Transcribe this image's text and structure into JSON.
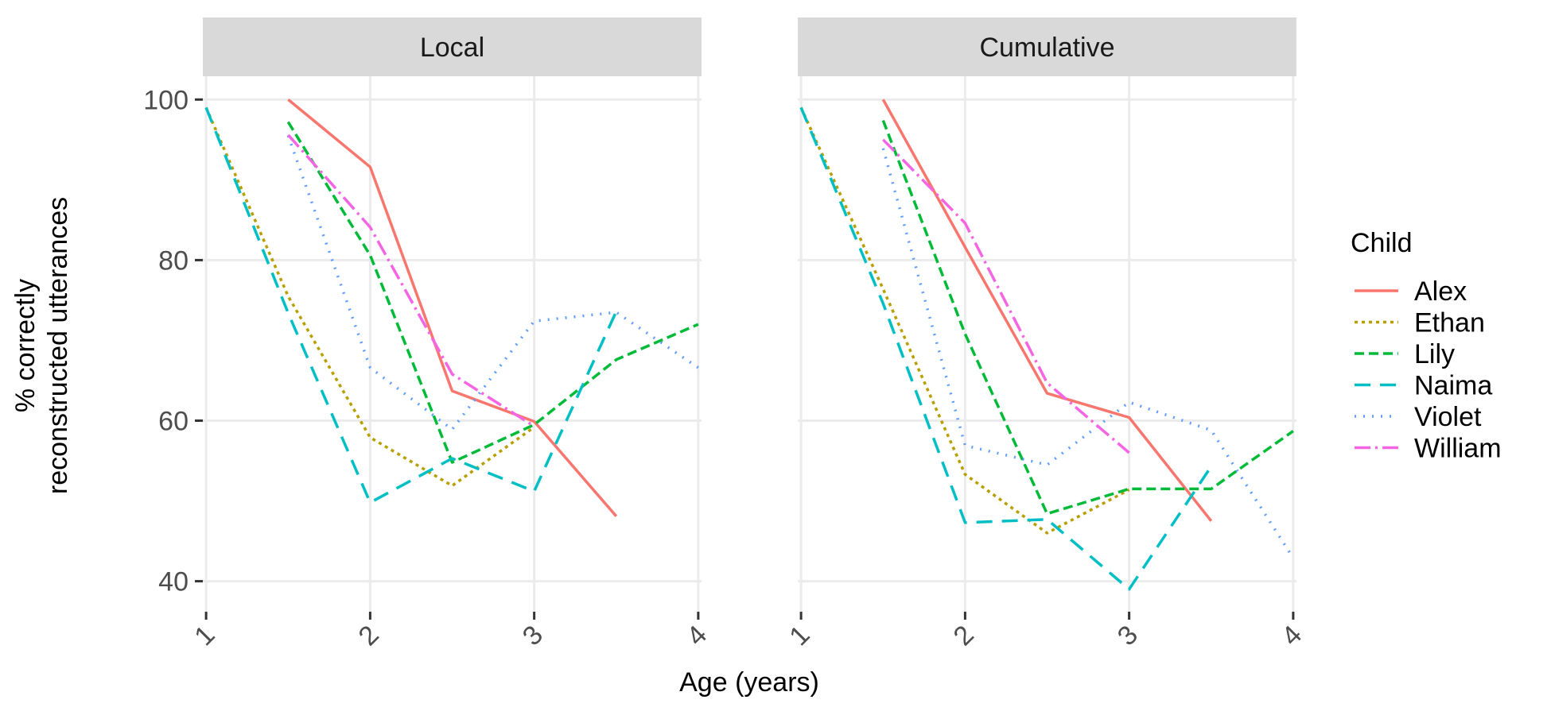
{
  "chart_data": {
    "type": "line",
    "xlabel": "Age (years)",
    "ylabel_lines": [
      "% correctly",
      "reconstructed utterances"
    ],
    "xticks": [
      1,
      2,
      3,
      4
    ],
    "xtick_labels": [
      "1",
      "2",
      "3",
      "4"
    ],
    "yticks": [
      40,
      60,
      80,
      100
    ],
    "ytick_labels": [
      "40",
      "60",
      "80",
      "100"
    ],
    "xlim": [
      0.98,
      4.02
    ],
    "ylim": [
      36.2,
      102.9
    ],
    "grid": true,
    "legend_position": "right",
    "legend_title": "Child",
    "series_styles": [
      {
        "name": "Alex",
        "color": "#F8766D",
        "dash": "none"
      },
      {
        "name": "Ethan",
        "color": "#B79F00",
        "dash": "dotted-short"
      },
      {
        "name": "Lily",
        "color": "#00BA38",
        "dash": "dashed"
      },
      {
        "name": "Naima",
        "color": "#00BFC4",
        "dash": "long-dash"
      },
      {
        "name": "Violet",
        "color": "#619CFF",
        "dash": "dotted"
      },
      {
        "name": "William",
        "color": "#F564E3",
        "dash": "dash-dot"
      }
    ],
    "panels": [
      {
        "title": "Local",
        "series": [
          {
            "name": "Alex",
            "x": [
              1.5,
              2.0,
              2.5,
              3.0,
              3.5
            ],
            "y": [
              100,
              91.6,
              63.7,
              59.9,
              48.1
            ]
          },
          {
            "name": "Ethan",
            "x": [
              1.0,
              1.5,
              2.0,
              2.5,
              3.0
            ],
            "y": [
              99.0,
              75.5,
              57.9,
              51.9,
              59.2
            ]
          },
          {
            "name": "Lily",
            "x": [
              1.5,
              2.0,
              2.5,
              3.0,
              3.5,
              4.0
            ],
            "y": [
              97.2,
              80.6,
              54.8,
              59.5,
              67.6,
              72.0
            ]
          },
          {
            "name": "Naima",
            "x": [
              1.0,
              1.5,
              2.0,
              2.5,
              3.0,
              3.5
            ],
            "y": [
              99.0,
              73.4,
              49.8,
              55.3,
              51.2,
              73.6
            ]
          },
          {
            "name": "Violet",
            "x": [
              1.5,
              2.0,
              2.5,
              3.0,
              3.5,
              4.0
            ],
            "y": [
              95.5,
              66.6,
              58.9,
              72.4,
              73.5,
              66.6
            ]
          },
          {
            "name": "William",
            "x": [
              1.5,
              2.0,
              2.5,
              3.0
            ],
            "y": [
              95.6,
              84.1,
              65.8,
              59.3
            ]
          }
        ]
      },
      {
        "title": "Cumulative",
        "series": [
          {
            "name": "Alex",
            "x": [
              1.5,
              2.0,
              2.5,
              3.0,
              3.5
            ],
            "y": [
              100,
              81.6,
              63.4,
              60.4,
              47.5
            ]
          },
          {
            "name": "Ethan",
            "x": [
              1.0,
              1.5,
              2.0,
              2.5,
              3.0
            ],
            "y": [
              99.0,
              76.4,
              53.3,
              46.0,
              51.4
            ]
          },
          {
            "name": "Lily",
            "x": [
              1.5,
              2.0,
              2.5,
              3.0,
              3.5,
              4.0
            ],
            "y": [
              97.4,
              70.8,
              48.4,
              51.5,
              51.5,
              58.7
            ]
          },
          {
            "name": "Naima",
            "x": [
              1.0,
              1.5,
              2.0,
              2.5,
              3.0,
              3.5
            ],
            "y": [
              99.0,
              74.6,
              47.3,
              47.7,
              39.0,
              54.3
            ]
          },
          {
            "name": "Violet",
            "x": [
              1.5,
              2.0,
              2.5,
              3.0,
              3.5,
              4.0
            ],
            "y": [
              93.9,
              56.9,
              54.5,
              62.3,
              58.8,
              42.9
            ]
          },
          {
            "name": "William",
            "x": [
              1.5,
              2.0,
              2.5,
              3.0
            ],
            "y": [
              95.0,
              84.6,
              64.7,
              56.0
            ]
          }
        ]
      }
    ]
  }
}
